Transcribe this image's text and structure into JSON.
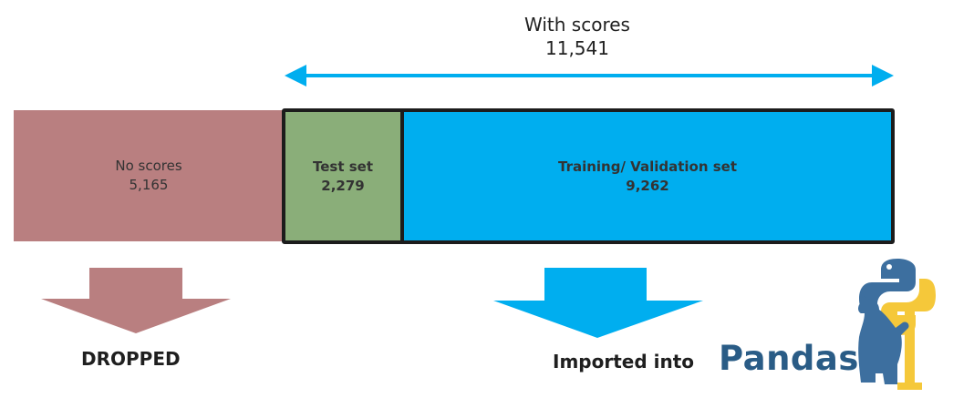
{
  "top": {
    "label": "With scores",
    "count": "11,541"
  },
  "segments": {
    "no_scores": {
      "label": "No scores",
      "count": "5,165"
    },
    "test": {
      "label": "Test set",
      "count": "2,279"
    },
    "train": {
      "label": "Training/ Validation set",
      "count": "9,262"
    }
  },
  "outcomes": {
    "dropped": "DROPPED",
    "imported": "Imported into",
    "pandas": "Pandas"
  },
  "colors": {
    "no_scores": "#b97f80",
    "test": "#8aae79",
    "train": "#00aeef",
    "arrow_blue": "#00aeef",
    "border": "#1c1c1c"
  },
  "icons": {
    "logo": "python-pandas-logo-icon"
  }
}
